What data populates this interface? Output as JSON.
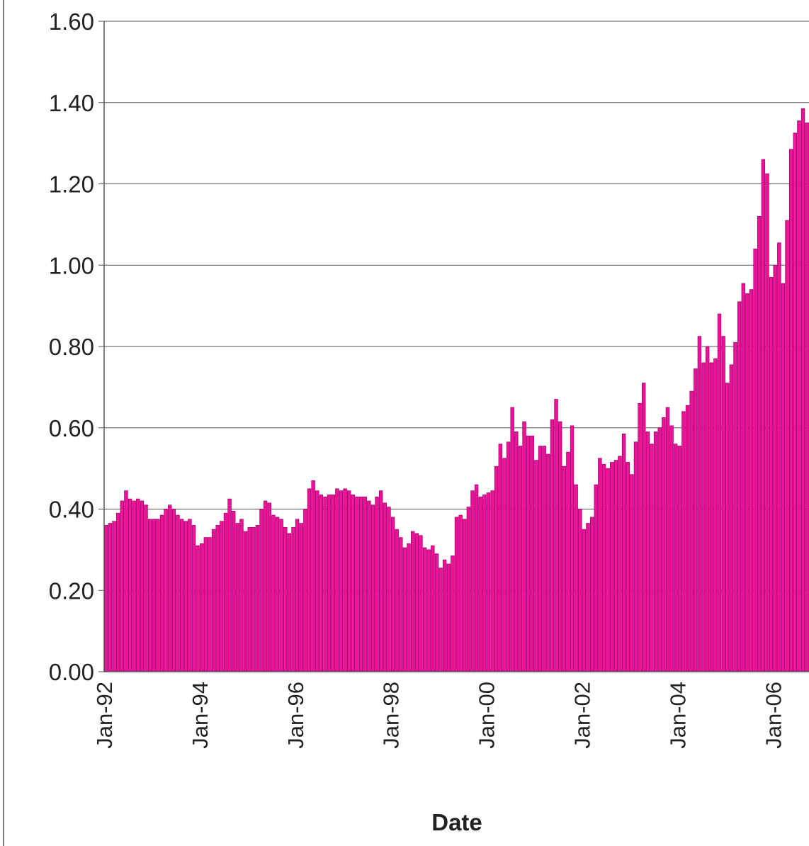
{
  "chart_data": {
    "type": "bar",
    "x_label": "Date",
    "categories": [
      "Jan-92",
      null,
      null,
      null,
      null,
      null,
      null,
      null,
      null,
      null,
      null,
      null,
      null,
      null,
      null,
      null,
      null,
      null,
      null,
      null,
      null,
      null,
      null,
      null,
      "Jan-94",
      null,
      null,
      null,
      null,
      null,
      null,
      null,
      null,
      null,
      null,
      null,
      null,
      null,
      null,
      null,
      null,
      null,
      null,
      null,
      null,
      null,
      null,
      null,
      "Jan-96",
      null,
      null,
      null,
      null,
      null,
      null,
      null,
      null,
      null,
      null,
      null,
      null,
      null,
      null,
      null,
      null,
      null,
      null,
      null,
      null,
      null,
      null,
      null,
      "Jan-98",
      null,
      null,
      null,
      null,
      null,
      null,
      null,
      null,
      null,
      null,
      null,
      null,
      null,
      null,
      null,
      null,
      null,
      null,
      null,
      null,
      null,
      null,
      null,
      "Jan-00",
      null,
      null,
      null,
      null,
      null,
      null,
      null,
      null,
      null,
      null,
      null,
      null,
      null,
      null,
      null,
      null,
      null,
      null,
      null,
      null,
      null,
      null,
      null,
      "Jan-02",
      null,
      null,
      null,
      null,
      null,
      null,
      null,
      null,
      null,
      null,
      null,
      null,
      null,
      null,
      null,
      null,
      null,
      null,
      null,
      null,
      null,
      null,
      null,
      "Jan-04",
      null,
      null,
      null,
      null,
      null,
      null,
      null,
      null,
      null,
      null,
      null,
      null,
      null,
      null,
      null,
      null,
      null,
      null,
      null,
      null,
      null,
      null,
      null,
      "Jan-06",
      null,
      null,
      null,
      null,
      null,
      null,
      null,
      null
    ],
    "values": [
      0.36,
      0.365,
      0.37,
      0.39,
      0.42,
      0.445,
      0.425,
      0.42,
      0.425,
      0.42,
      0.41,
      0.375,
      0.375,
      0.375,
      0.385,
      0.4,
      0.41,
      0.4,
      0.385,
      0.375,
      0.37,
      0.375,
      0.36,
      0.31,
      0.315,
      0.33,
      0.33,
      0.35,
      0.36,
      0.37,
      0.39,
      0.425,
      0.395,
      0.365,
      0.375,
      0.345,
      0.355,
      0.355,
      0.36,
      0.4,
      0.42,
      0.415,
      0.385,
      0.38,
      0.375,
      0.355,
      0.34,
      0.355,
      0.375,
      0.365,
      0.4,
      0.45,
      0.47,
      0.445,
      0.435,
      0.43,
      0.435,
      0.435,
      0.45,
      0.445,
      0.45,
      0.445,
      0.435,
      0.43,
      0.43,
      0.43,
      0.42,
      0.41,
      0.43,
      0.445,
      0.415,
      0.405,
      0.38,
      0.35,
      0.33,
      0.305,
      0.315,
      0.345,
      0.34,
      0.335,
      0.305,
      0.3,
      0.31,
      0.29,
      0.255,
      0.275,
      0.265,
      0.285,
      0.38,
      0.385,
      0.375,
      0.405,
      0.445,
      0.46,
      0.43,
      0.435,
      0.44,
      0.445,
      0.505,
      0.56,
      0.525,
      0.565,
      0.65,
      0.59,
      0.555,
      0.615,
      0.58,
      0.58,
      0.52,
      0.555,
      0.555,
      0.535,
      0.62,
      0.67,
      0.615,
      0.505,
      0.54,
      0.605,
      0.46,
      0.4,
      0.35,
      0.365,
      0.38,
      0.46,
      0.525,
      0.51,
      0.5,
      0.515,
      0.52,
      0.53,
      0.585,
      0.515,
      0.485,
      0.565,
      0.66,
      0.71,
      0.59,
      0.56,
      0.59,
      0.6,
      0.625,
      0.65,
      0.605,
      0.56,
      0.555,
      0.64,
      0.655,
      0.69,
      0.745,
      0.825,
      0.76,
      0.8,
      0.76,
      0.77,
      0.88,
      0.825,
      0.71,
      0.755,
      0.81,
      0.91,
      0.955,
      0.93,
      0.94,
      1.04,
      1.12,
      1.26,
      1.225,
      0.97,
      1.0,
      1.055,
      0.955,
      1.11,
      1.285,
      1.325,
      1.355,
      1.385,
      1.35
    ],
    "color": "#ee1199",
    "edge_color": "#a8006a",
    "ylim": [
      0,
      1.6
    ],
    "yticks": [
      {
        "value": 0,
        "label": "0.00"
      },
      {
        "value": 0.2,
        "label": "0.20"
      },
      {
        "value": 0.4,
        "label": "0.40"
      },
      {
        "value": 0.6,
        "label": "0.60"
      },
      {
        "value": 0.8,
        "label": "0.80"
      },
      {
        "value": 1.0,
        "label": "1.00"
      },
      {
        "value": 1.2,
        "label": "1.20"
      },
      {
        "value": 1.4,
        "label": "1.40"
      },
      {
        "value": 1.6,
        "label": "1.60"
      }
    ],
    "grid": true
  }
}
